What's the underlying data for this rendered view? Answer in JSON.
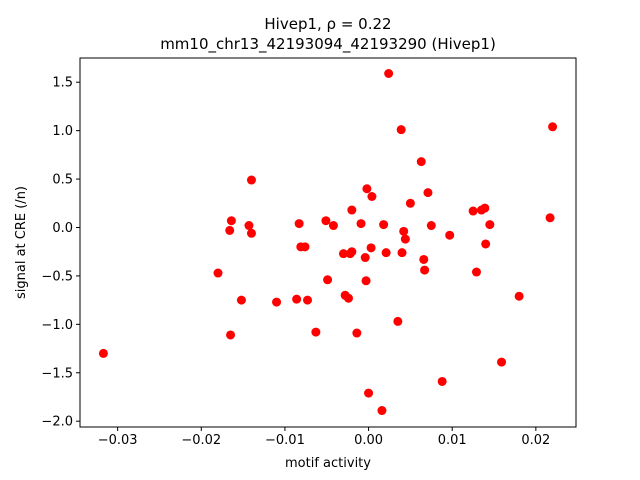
{
  "chart_data": {
    "type": "scatter",
    "title_line1": "Hivep1, ρ = 0.22",
    "title_line2": "mm10_chr13_42193094_42193290 (Hivep1)",
    "xlabel": "motif activity",
    "ylabel": "signal at CRE (/n)",
    "xlim": [
      -0.0345,
      0.0248
    ],
    "ylim": [
      -2.06,
      1.75
    ],
    "xticks": [
      -0.03,
      -0.02,
      -0.01,
      0.0,
      0.01,
      0.02
    ],
    "xtick_labels": [
      "−0.03",
      "−0.02",
      "−0.01",
      "0.00",
      "0.01",
      "0.02"
    ],
    "yticks": [
      -2.0,
      -1.5,
      -1.0,
      -0.5,
      0.0,
      0.5,
      1.0,
      1.5
    ],
    "ytick_labels": [
      "−2.0",
      "−1.5",
      "−1.0",
      "−0.5",
      "0.0",
      "0.5",
      "1.0",
      "1.5"
    ],
    "grid": false,
    "marker_color": "#ff0000",
    "points": [
      {
        "x": -0.0317,
        "y": -1.3
      },
      {
        "x": -0.018,
        "y": -0.47
      },
      {
        "x": -0.0166,
        "y": -0.03
      },
      {
        "x": -0.0164,
        "y": 0.07
      },
      {
        "x": -0.0165,
        "y": -1.11
      },
      {
        "x": -0.0152,
        "y": -0.75
      },
      {
        "x": -0.0143,
        "y": 0.02
      },
      {
        "x": -0.014,
        "y": -0.06
      },
      {
        "x": -0.014,
        "y": 0.49
      },
      {
        "x": -0.011,
        "y": -0.77
      },
      {
        "x": -0.0086,
        "y": -0.74
      },
      {
        "x": -0.0083,
        "y": 0.04
      },
      {
        "x": -0.0081,
        "y": -0.2
      },
      {
        "x": -0.0076,
        "y": -0.2
      },
      {
        "x": -0.0073,
        "y": -0.75
      },
      {
        "x": -0.0063,
        "y": -1.08
      },
      {
        "x": -0.0051,
        "y": 0.07
      },
      {
        "x": -0.0049,
        "y": -0.54
      },
      {
        "x": -0.0042,
        "y": 0.02
      },
      {
        "x": -0.003,
        "y": -0.27
      },
      {
        "x": -0.0028,
        "y": -0.7
      },
      {
        "x": -0.0024,
        "y": -0.73
      },
      {
        "x": -0.0022,
        "y": -0.27
      },
      {
        "x": -0.002,
        "y": -0.25
      },
      {
        "x": -0.002,
        "y": 0.18
      },
      {
        "x": -0.0014,
        "y": -1.09
      },
      {
        "x": -0.0009,
        "y": 0.04
      },
      {
        "x": -0.0004,
        "y": -0.31
      },
      {
        "x": -0.0003,
        "y": -0.55
      },
      {
        "x": -0.0002,
        "y": 0.4
      },
      {
        "x": 0.0,
        "y": -1.71
      },
      {
        "x": 0.0003,
        "y": -0.21
      },
      {
        "x": 0.0004,
        "y": 0.32
      },
      {
        "x": 0.0016,
        "y": -1.89
      },
      {
        "x": 0.0018,
        "y": 0.03
      },
      {
        "x": 0.0021,
        "y": -0.26
      },
      {
        "x": 0.0024,
        "y": 1.59
      },
      {
        "x": 0.0035,
        "y": -0.97
      },
      {
        "x": 0.0039,
        "y": 1.01
      },
      {
        "x": 0.004,
        "y": -0.26
      },
      {
        "x": 0.0042,
        "y": -0.04
      },
      {
        "x": 0.0044,
        "y": -0.12
      },
      {
        "x": 0.005,
        "y": 0.25
      },
      {
        "x": 0.0063,
        "y": 0.68
      },
      {
        "x": 0.0066,
        "y": -0.33
      },
      {
        "x": 0.0067,
        "y": -0.44
      },
      {
        "x": 0.0071,
        "y": 0.36
      },
      {
        "x": 0.0075,
        "y": 0.02
      },
      {
        "x": 0.0088,
        "y": -1.59
      },
      {
        "x": 0.0097,
        "y": -0.08
      },
      {
        "x": 0.0125,
        "y": 0.17
      },
      {
        "x": 0.0129,
        "y": -0.46
      },
      {
        "x": 0.0135,
        "y": 0.18
      },
      {
        "x": 0.0139,
        "y": 0.2
      },
      {
        "x": 0.014,
        "y": -0.17
      },
      {
        "x": 0.0145,
        "y": 0.03
      },
      {
        "x": 0.0159,
        "y": -1.39
      },
      {
        "x": 0.018,
        "y": -0.71
      },
      {
        "x": 0.0217,
        "y": 0.1
      },
      {
        "x": 0.022,
        "y": 1.04
      }
    ]
  }
}
